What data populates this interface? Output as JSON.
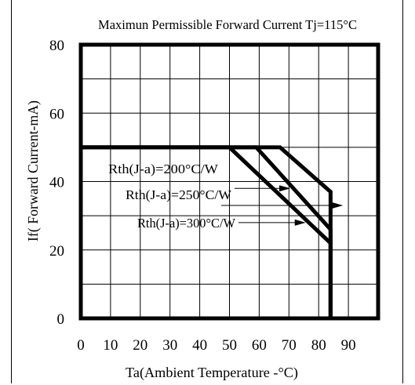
{
  "chart_data": {
    "type": "line",
    "title": "Maximun Permissible Forward Current Tj=115°C",
    "xlabel": "Ta(Ambient Temperature -°C)",
    "ylabel": "If( Forward Current-mA)",
    "xlim": [
      0,
      100
    ],
    "ylim": [
      0,
      80
    ],
    "xticks": [
      0,
      10,
      20,
      30,
      40,
      50,
      60,
      70,
      80,
      90
    ],
    "yticks": [
      0,
      20,
      40,
      60,
      80
    ],
    "grid": true,
    "series": [
      {
        "name": "Rth(J-a)=200°C/W",
        "x": [
          0,
          67,
          84,
          84
        ],
        "y": [
          50,
          50,
          37,
          0
        ]
      },
      {
        "name": "Rth(J-a)=250°C/W",
        "x": [
          0,
          59,
          84,
          84
        ],
        "y": [
          50,
          50,
          26,
          0
        ]
      },
      {
        "name": "Rth(J-a)=300°C/W",
        "x": [
          0,
          50,
          84,
          84
        ],
        "y": [
          50,
          50,
          22,
          0
        ]
      }
    ]
  }
}
